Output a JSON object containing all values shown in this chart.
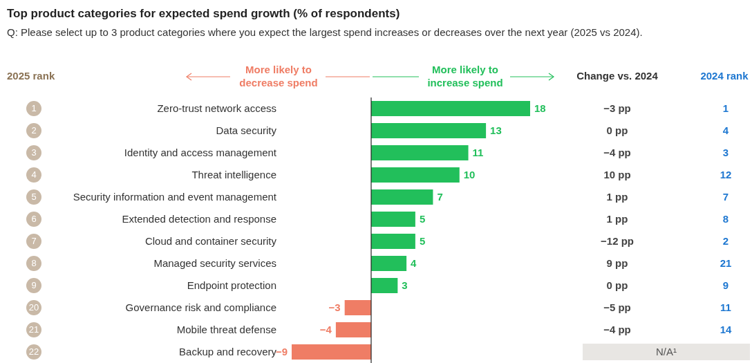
{
  "chart_data": {
    "type": "bar",
    "orientation": "horizontal",
    "title": "Top product categories for expected spend growth (% of respondents)",
    "subtitle": "Q: Please select up to 3 product categories where you expect the largest spend increases or decreases over the next year (2025 vs 2024).",
    "categories": [
      "Zero-trust network access",
      "Data security",
      "Identity and access management",
      "Threat intelligence",
      "Security information and event management",
      "Extended detection and response",
      "Cloud and container security",
      "Managed security services",
      "Endpoint protection",
      "Governance risk and compliance",
      "Mobile threat defense",
      "Backup and recovery"
    ],
    "values": [
      18,
      13,
      11,
      10,
      7,
      5,
      5,
      4,
      3,
      -3,
      -4,
      -9
    ],
    "colors": [
      "#22bf5b",
      "#22bf5b",
      "#22bf5b",
      "#22bf5b",
      "#22bf5b",
      "#22bf5b",
      "#22bf5b",
      "#22bf5b",
      "#22bf5b",
      "#ef7d65",
      "#ef7d65",
      "#ef7d65"
    ],
    "data_labels": true,
    "tick_labels": "y",
    "grid": false,
    "legend": false,
    "annotations": [
      "2025 rank",
      "More likely to decrease spend",
      "More likely to increase spend",
      "Change vs. 2024",
      "2024 rank",
      "1",
      "−3 pp",
      "1",
      "2",
      "0 pp",
      "4",
      "3",
      "−4 pp",
      "3",
      "4",
      "10 pp",
      "12",
      "5",
      "1 pp",
      "7",
      "6",
      "1 pp",
      "8",
      "7",
      "−12 pp",
      "2",
      "8",
      "9 pp",
      "21",
      "9",
      "0 pp",
      "9",
      "20",
      "−5 pp",
      "11",
      "21",
      "−4 pp",
      "14",
      "22",
      "N/A¹"
    ]
  }
}
